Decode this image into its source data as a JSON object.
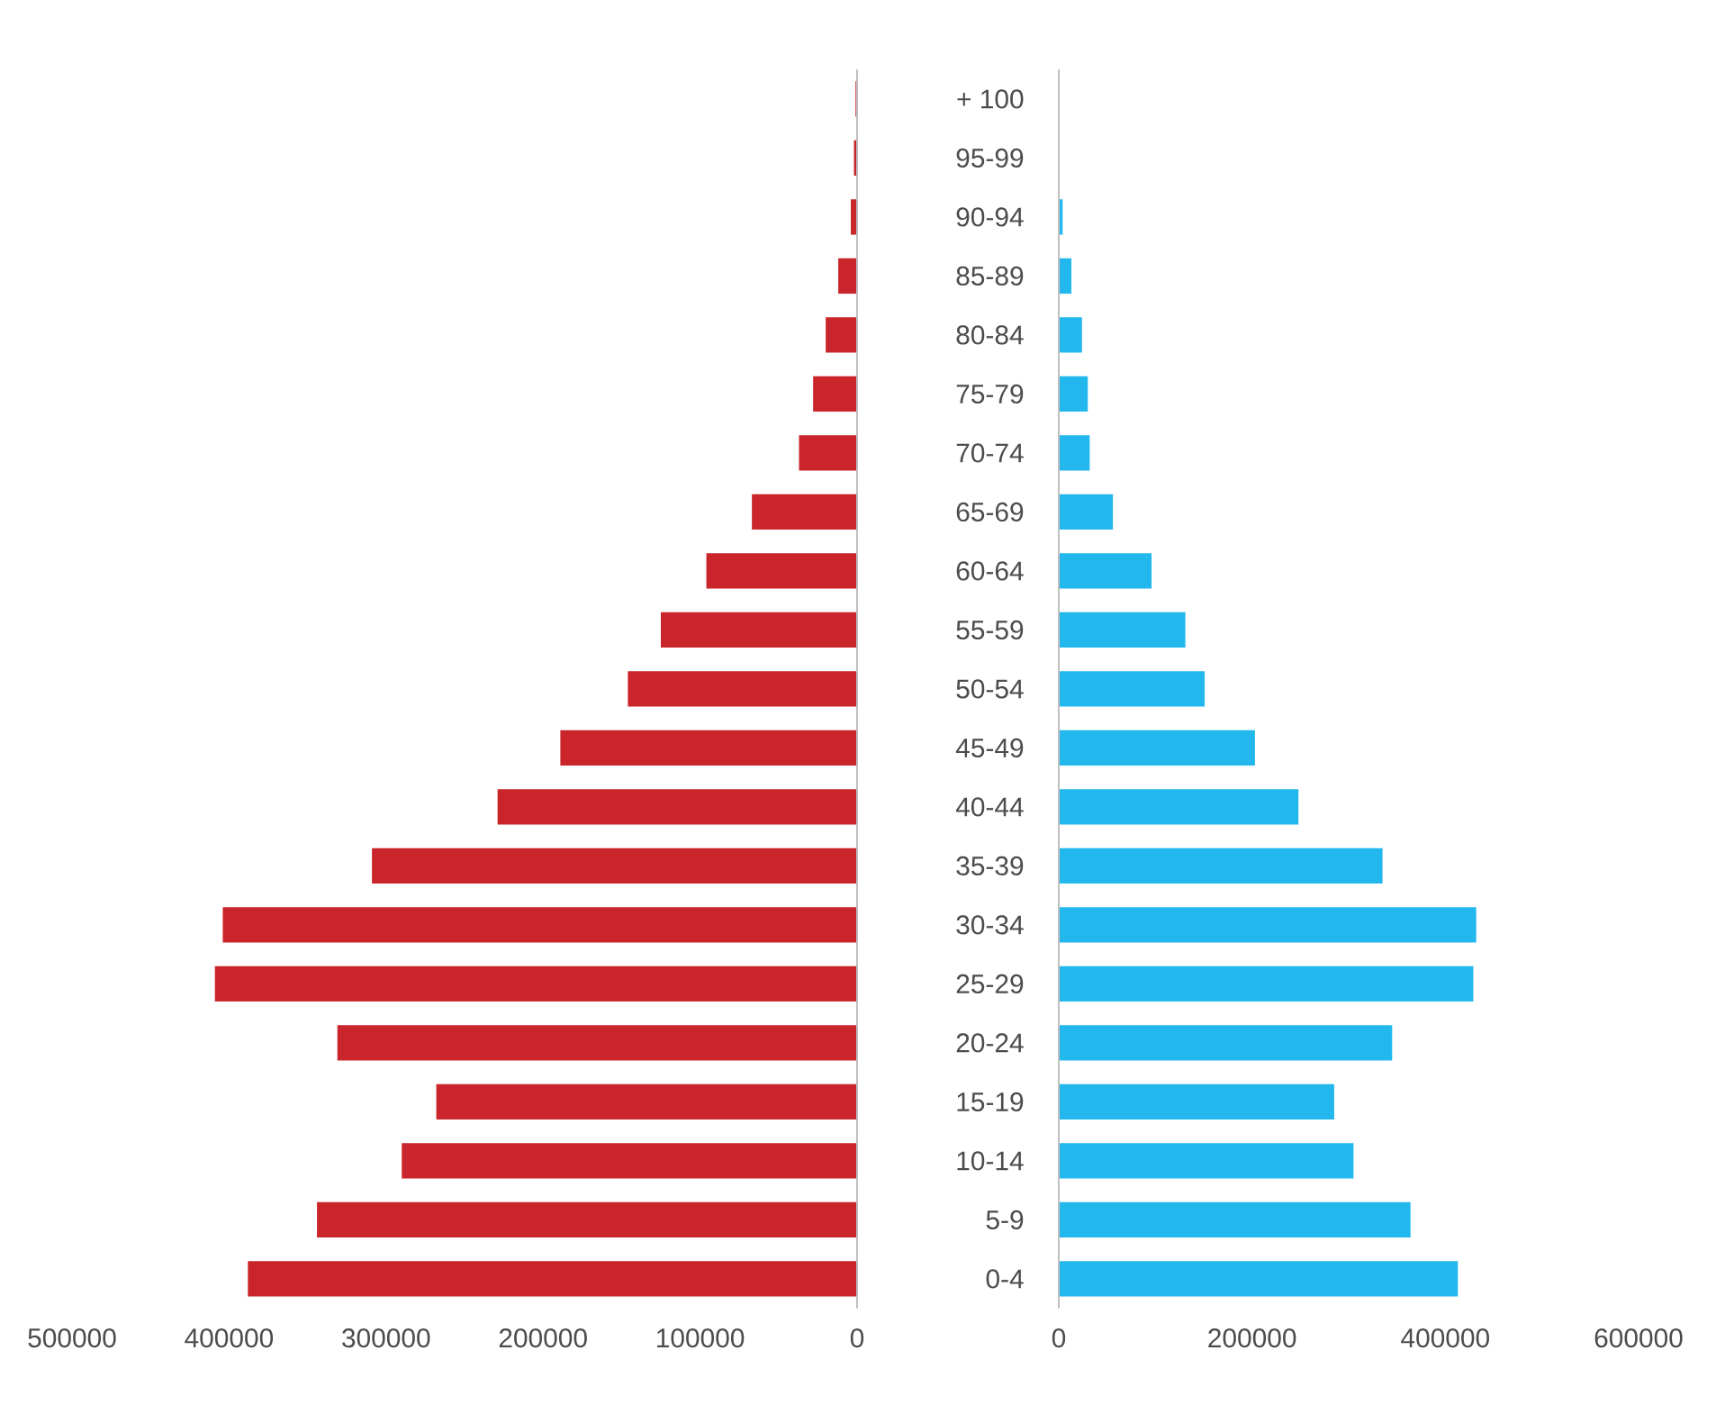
{
  "chart_data": [
    {
      "type": "bar",
      "orientation": "horizontal",
      "tick_labels": "x",
      "color": "#c9252b",
      "categories": [
        null,
        null,
        null,
        null,
        null,
        null,
        null,
        null,
        null,
        null,
        null,
        null,
        null,
        null,
        null,
        null,
        null,
        null,
        null,
        null,
        null
      ],
      "values": [
        1000,
        2000,
        4000,
        12000,
        20000,
        28000,
        37000,
        67000,
        96000,
        125000,
        146000,
        189000,
        229000,
        309000,
        404000,
        409000,
        331000,
        268000,
        290000,
        344000,
        388000
      ],
      "xlim": [
        500000,
        0
      ],
      "xticks": [
        500000,
        400000,
        300000,
        200000,
        100000,
        0
      ]
    },
    {
      "type": "bar",
      "orientation": "horizontal",
      "color": "#22b8ee",
      "categories": [
        "+ 100",
        "95-99",
        "90-94",
        "85-89",
        "80-84",
        "75-79",
        "70-74",
        "65-69",
        "60-64",
        "55-59",
        "50-54",
        "45-49",
        "40-44",
        "35-39",
        "30-34",
        "25-29",
        "20-24",
        "15-19",
        "10-14",
        "5-9",
        "0-4"
      ],
      "values": [
        null,
        null,
        4000,
        13000,
        24000,
        30000,
        32000,
        56000,
        96000,
        131000,
        151000,
        203000,
        248000,
        335000,
        432000,
        429000,
        345000,
        285000,
        305000,
        364000,
        413000
      ],
      "xlim": [
        0,
        600000
      ],
      "xticks": [
        0,
        200000,
        400000,
        600000
      ]
    }
  ]
}
